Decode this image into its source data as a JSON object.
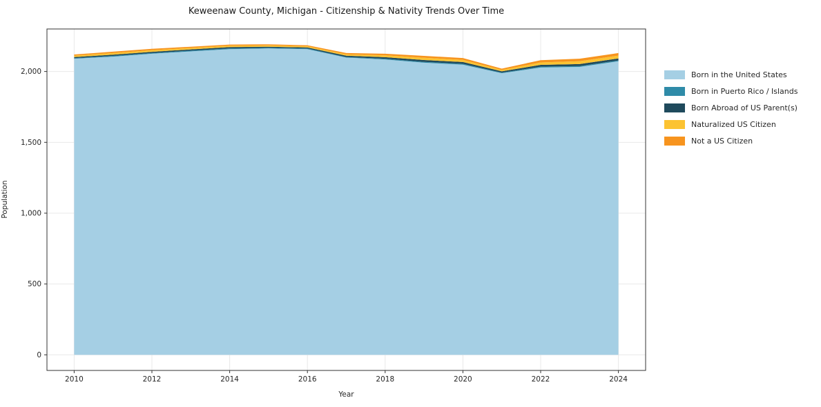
{
  "title": "Keweenaw County, Michigan - Citizenship & Nativity Trends Over Time",
  "chart_data": {
    "type": "area",
    "stacked": true,
    "title": "Keweenaw County, Michigan - Citizenship & Nativity Trends Over Time",
    "xlabel": "Year",
    "ylabel": "Population",
    "x": [
      2010,
      2011,
      2012,
      2013,
      2014,
      2015,
      2016,
      2017,
      2018,
      2019,
      2020,
      2021,
      2022,
      2023,
      2024
    ],
    "series": [
      {
        "name": "Born in the United States",
        "color": "#a5cfe4",
        "values": [
          2090,
          2105,
          2125,
          2142,
          2158,
          2162,
          2158,
          2098,
          2085,
          2062,
          2048,
          1988,
          2028,
          2032,
          2072
        ]
      },
      {
        "name": "Born in Puerto Rico / Islands",
        "color": "#2f8ba8",
        "values": [
          4,
          5,
          5,
          5,
          5,
          5,
          4,
          4,
          5,
          6,
          6,
          4,
          6,
          6,
          6
        ]
      },
      {
        "name": "Born Abroad of US Parent(s)",
        "color": "#1f4a5c",
        "values": [
          8,
          9,
          9,
          9,
          9,
          8,
          8,
          9,
          11,
          13,
          13,
          9,
          13,
          14,
          14
        ]
      },
      {
        "name": "Naturalized US Citizen",
        "color": "#fcc332",
        "values": [
          10,
          11,
          11,
          10,
          10,
          9,
          8,
          10,
          13,
          16,
          15,
          10,
          17,
          20,
          20
        ]
      },
      {
        "name": "Not a US Citizen",
        "color": "#f7941e",
        "values": [
          8,
          10,
          10,
          9,
          8,
          8,
          7,
          9,
          11,
          13,
          13,
          9,
          16,
          18,
          18
        ]
      }
    ],
    "xlim": [
      2009.3,
      2024.7
    ],
    "ylim": [
      -110,
      2300
    ],
    "xticks": [
      2010,
      2012,
      2014,
      2016,
      2018,
      2020,
      2022,
      2024
    ],
    "yticks": [
      0,
      500,
      1000,
      1500,
      2000
    ],
    "grid": true,
    "legend_position": "right"
  },
  "colors": {
    "grid": "#e8e8e8",
    "axis": "#333333",
    "tick_text": "#262626",
    "background": "#ffffff"
  }
}
